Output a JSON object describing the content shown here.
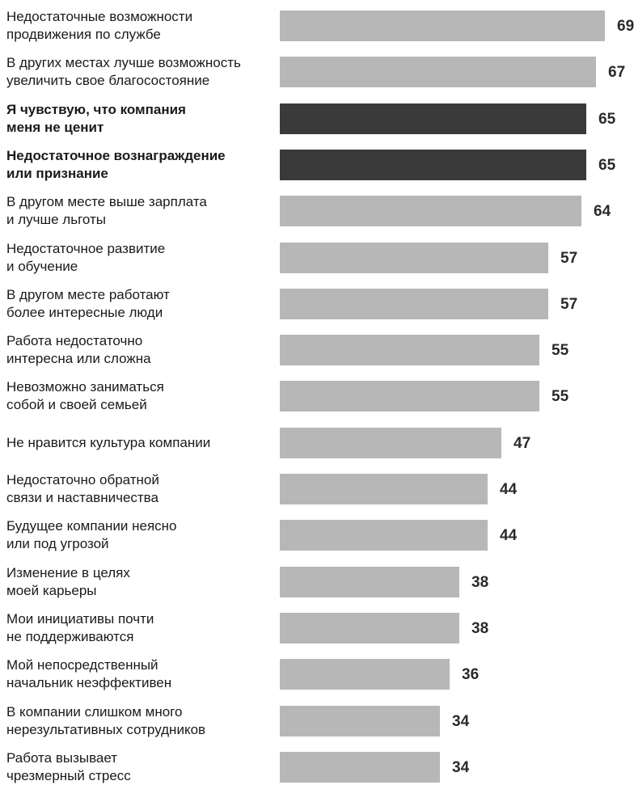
{
  "chart_data": {
    "type": "bar",
    "orientation": "horizontal",
    "title": "",
    "xlabel": "",
    "ylabel": "",
    "xlim": [
      0,
      69
    ],
    "grid": false,
    "colors": {
      "default": "#b7b7b7",
      "highlight": "#3a3a3a"
    },
    "categories": [
      "Недостаточные возможности\nпродвижения по службе",
      "В других местах лучше возможность\nувеличить свое благосостояние",
      "Я чувствую, что компания\nменя не ценит",
      "Недостаточное вознаграждение\nили признание",
      "В другом месте выше зарплата\nи лучше льготы",
      "Недостаточное развитие\nи обучение",
      "В другом месте работают\nболее интересные люди",
      "Работа недостаточно\nинтересна или сложна",
      "Невозможно заниматься\nсобой и своей семьей",
      "Не нравится культура компании",
      "Недостаточно обратной\nсвязи и наставничества",
      "Будущее компании неясно\nили под угрозой",
      "Изменение в целях\nмоей карьеры",
      "Мои инициативы почти\nне поддерживаются",
      "Мой непосредственный\nначальник неэффективен",
      "В компании слишком много\nнерезультативных сотрудников",
      "Работа вызывает\nчрезмерный стресс"
    ],
    "values": [
      69,
      67,
      65,
      65,
      64,
      57,
      57,
      55,
      55,
      47,
      44,
      44,
      38,
      38,
      36,
      34,
      34
    ],
    "highlighted": [
      false,
      false,
      true,
      true,
      false,
      false,
      false,
      false,
      false,
      false,
      false,
      false,
      false,
      false,
      false,
      false,
      false
    ]
  }
}
